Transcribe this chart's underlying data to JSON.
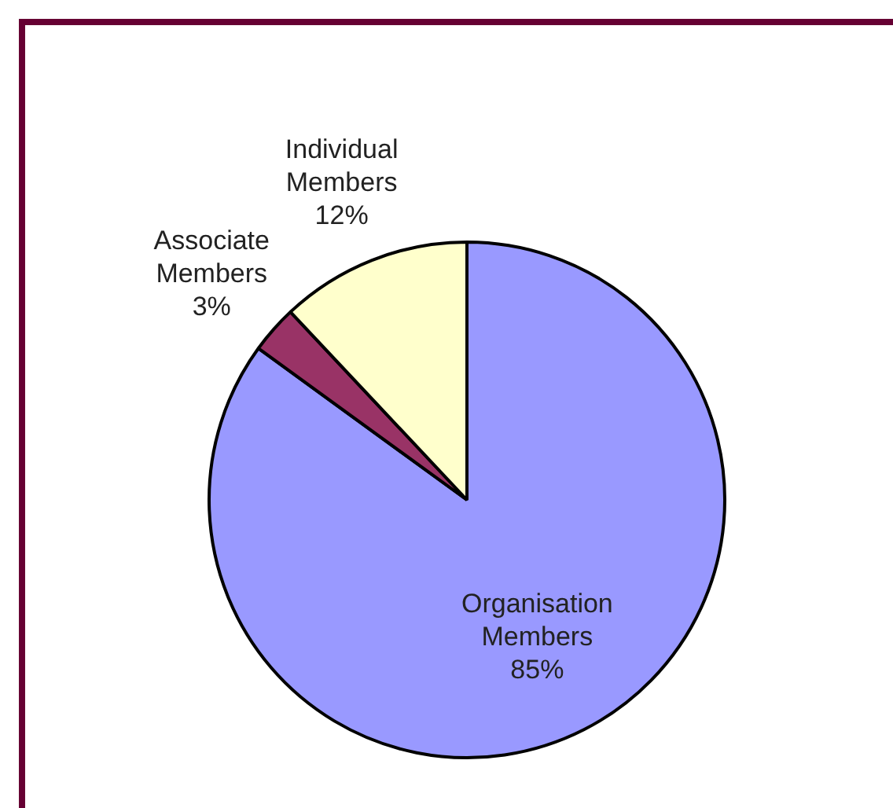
{
  "chart_data": {
    "type": "pie",
    "categories": [
      "Organisation Members",
      "Associate Members",
      "Individual Members"
    ],
    "values": [
      85,
      3,
      12
    ],
    "colors": [
      "#9999ff",
      "#993366",
      "#ffffcc"
    ],
    "value_labels": [
      "85%",
      "3%",
      "12%"
    ],
    "legend": false
  }
}
